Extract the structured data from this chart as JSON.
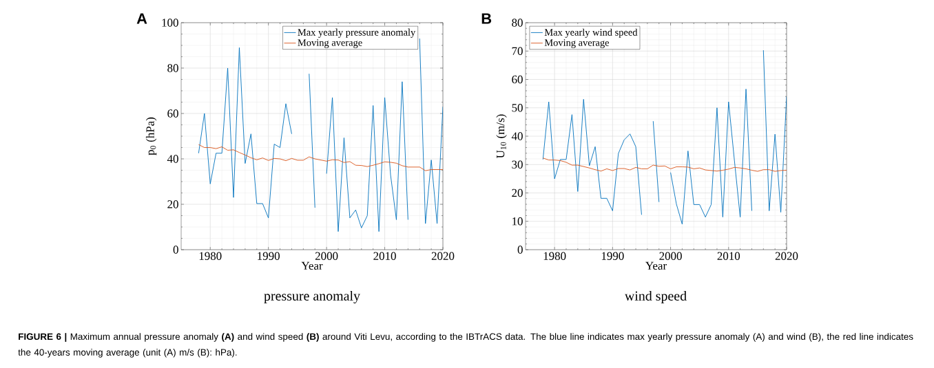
{
  "chart_data": [
    {
      "type": "line",
      "title": "A",
      "xlabel": "Year",
      "ylabel": "p$_{0}$ (hPa)",
      "xlim": [
        1975,
        2020
      ],
      "ylim": [
        0,
        100
      ],
      "xticks": [
        1980,
        1990,
        2000,
        2010,
        2020
      ],
      "yticks": [
        0,
        20,
        40,
        60,
        80,
        100
      ],
      "grid": true,
      "legend": "top right",
      "x": [
        1978,
        1979,
        1980,
        1981,
        1982,
        1983,
        1984,
        1985,
        1986,
        1987,
        1988,
        1989,
        1990,
        1991,
        1992,
        1993,
        1994,
        1995,
        1996,
        1997,
        1998,
        1999,
        2000,
        2001,
        2002,
        2003,
        2004,
        2005,
        2006,
        2007,
        2008,
        2009,
        2010,
        2011,
        2012,
        2013,
        2014,
        2015,
        2016,
        2017,
        2018,
        2019,
        2020
      ],
      "series": [
        {
          "name": "Max yearly pressure anomaly",
          "color": "#0072bd",
          "values": [
            42.5,
            60,
            29,
            42.5,
            42.5,
            80,
            23,
            89,
            38,
            51,
            20.3,
            20.3,
            14,
            46.5,
            45,
            64.3,
            51,
            null,
            null,
            77.5,
            18.5,
            null,
            33.5,
            67,
            8,
            49.3,
            14,
            17.5,
            9.6,
            15,
            63.5,
            8,
            67,
            33,
            13.2,
            74,
            13.2,
            null,
            93,
            11.5,
            39.5,
            11.5,
            63
          ]
        },
        {
          "name": "Moving average",
          "color": "#d95319",
          "values": [
            46.3,
            45,
            45,
            44.5,
            45.3,
            43.8,
            44,
            42.8,
            41.7,
            40.5,
            39.6,
            40.4,
            39.3,
            40.2,
            40,
            39.2,
            40.2,
            39.4,
            39.4,
            40.9,
            40,
            39.5,
            39,
            39.6,
            39.5,
            38.4,
            38.8,
            37.2,
            37.1,
            36.6,
            37.2,
            37.9,
            38.7,
            38.5,
            38.1,
            37,
            36.4,
            36.4,
            36.4,
            34.8,
            35.3,
            35.3,
            35.3
          ]
        }
      ],
      "annotations": [
        "pressure anomaly",
        "**FIGURE 6 |** Maximum annual pressure anomaly **(A)** and wind speed **(B)** around Viti Levu, according to the IBTrACS data. The blue line indicates max yearly pressure anomaly (A) and wind (B), the red line indicates the 40-years moving average (unit (A) m/s (B): hPa)."
      ]
    },
    {
      "type": "line",
      "title": "B",
      "xlabel": "Year",
      "ylabel": "U$_{10}$ (m/s)",
      "xlim": [
        1975,
        2020
      ],
      "ylim": [
        0,
        80
      ],
      "xticks": [
        1980,
        1990,
        2000,
        2010,
        2020
      ],
      "yticks": [
        0,
        10,
        20,
        30,
        40,
        50,
        60,
        70,
        80
      ],
      "grid": true,
      "legend": "top left",
      "x": [
        1978,
        1979,
        1980,
        1981,
        1982,
        1983,
        1984,
        1985,
        1986,
        1987,
        1988,
        1989,
        1990,
        1991,
        1992,
        1993,
        1994,
        1995,
        1996,
        1997,
        1998,
        1999,
        2000,
        2001,
        2002,
        2003,
        2004,
        2005,
        2006,
        2007,
        2008,
        2009,
        2010,
        2011,
        2012,
        2013,
        2014,
        2015,
        2016,
        2017,
        2018,
        2019,
        2020
      ],
      "series": [
        {
          "name": "Max yearly wind speed",
          "color": "#0072bd",
          "values": [
            31.8,
            52.1,
            25,
            31.8,
            31.8,
            47.6,
            20.5,
            53,
            29.6,
            36.3,
            18.1,
            18.1,
            13.7,
            33.9,
            38.7,
            40.8,
            36.3,
            12.3,
            null,
            45.3,
            16.8,
            null,
            27.2,
            16.1,
            9,
            34.8,
            15.9,
            15.9,
            11.5,
            15.9,
            50,
            11.5,
            52.1,
            31.5,
            11.5,
            56.6,
            13.7,
            null,
            70.3,
            13.7,
            40.7,
            13.2,
            54
          ]
        },
        {
          "name": "Moving average",
          "color": "#d95319",
          "values": [
            32.3,
            31.6,
            31.6,
            31.4,
            30.8,
            29.8,
            29.8,
            29.3,
            28.8,
            28.2,
            27.7,
            28.5,
            27.9,
            28.6,
            28.6,
            28.1,
            29,
            28.5,
            28.5,
            29.8,
            29.4,
            29.5,
            28.5,
            29.2,
            29.2,
            29.1,
            28.5,
            28.8,
            28.1,
            27.9,
            27.7,
            28,
            28.4,
            29,
            28.8,
            28.5,
            28,
            27.6,
            28.2,
            28.2,
            27.6,
            27.9,
            28
          ]
        }
      ],
      "annotations": [
        "wind speed"
      ]
    }
  ]
}
